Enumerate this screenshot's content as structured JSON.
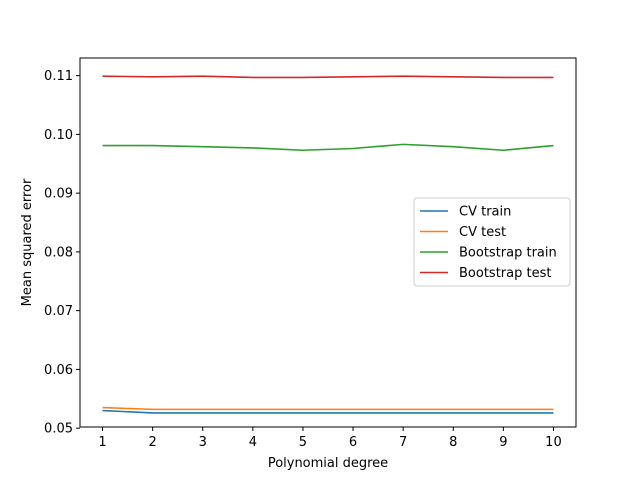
{
  "chart_data": {
    "type": "line",
    "title": "",
    "xlabel": "Polynomial degree",
    "ylabel": "Mean squared error",
    "x": [
      1,
      2,
      3,
      4,
      5,
      6,
      7,
      8,
      9,
      10
    ],
    "xticks": [
      1,
      2,
      3,
      4,
      5,
      6,
      7,
      8,
      9,
      10
    ],
    "xlim": [
      0.55,
      10.45
    ],
    "yticks": [
      0.05,
      0.06,
      0.07,
      0.08,
      0.09,
      0.1,
      0.11
    ],
    "ytick_labels": [
      "0.05",
      "0.06",
      "0.07",
      "0.08",
      "0.09",
      "0.10",
      "0.11"
    ],
    "ylim": [
      0.0502,
      0.113
    ],
    "grid": false,
    "legend_position": "center-right",
    "series": [
      {
        "name": "CV train",
        "color": "#1f77b4",
        "values": [
          0.053,
          0.0526,
          0.0526,
          0.0526,
          0.0526,
          0.0526,
          0.0526,
          0.0526,
          0.0526,
          0.0526
        ]
      },
      {
        "name": "CV test",
        "color": "#ff7f0e",
        "values": [
          0.0535,
          0.0532,
          0.0532,
          0.0532,
          0.0532,
          0.0532,
          0.0532,
          0.0532,
          0.0532,
          0.0532
        ]
      },
      {
        "name": "Bootstrap train",
        "color": "#2ca02c",
        "values": [
          0.0981,
          0.0981,
          0.0979,
          0.0977,
          0.0973,
          0.0976,
          0.0983,
          0.0979,
          0.0973,
          0.0981
        ]
      },
      {
        "name": "Bootstrap test",
        "color": "#d62728",
        "values": [
          0.1099,
          0.1098,
          0.1099,
          0.1097,
          0.1097,
          0.1098,
          0.1099,
          0.1098,
          0.1097,
          0.1097
        ]
      }
    ]
  }
}
